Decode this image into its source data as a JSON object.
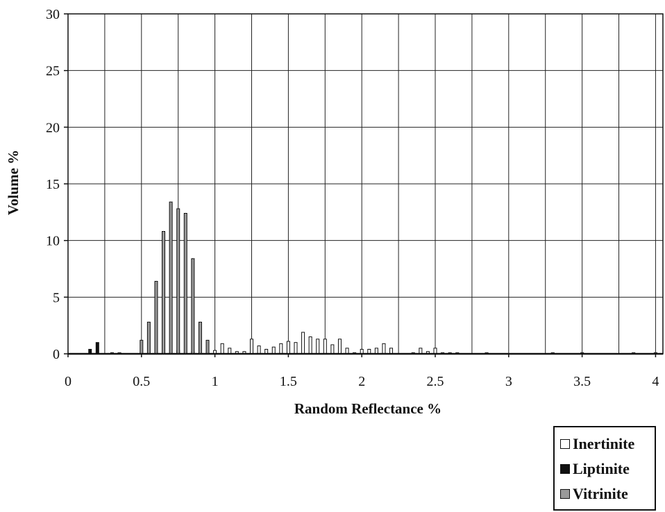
{
  "chart_data": {
    "type": "bar",
    "xlabel": "Random Reflectance %",
    "ylabel": "Volume %",
    "xlim": [
      0,
      4.05
    ],
    "ylim": [
      0,
      30
    ],
    "xticks": [
      0,
      0.5,
      1,
      1.5,
      2,
      2.5,
      3,
      3.5,
      4
    ],
    "xtick_labels": [
      "0",
      "0.5",
      "1",
      "1.5",
      "2",
      "2.5",
      "3",
      "3.5",
      "4"
    ],
    "yticks": [
      0,
      5,
      10,
      15,
      20,
      25,
      30
    ],
    "ytick_labels": [
      "0",
      "5",
      "10",
      "15",
      "20",
      "25",
      "30"
    ],
    "grid": true,
    "legend_position": "bottom-right",
    "legend": [
      "Inertinite",
      "Liptinite",
      "Vitrinite"
    ],
    "series": [
      {
        "name": "Inertinite",
        "color": "#ffffff",
        "pattern": "empty",
        "x": [
          0.35,
          0.75,
          0.85,
          0.95,
          1.0,
          1.05,
          1.1,
          1.15,
          1.2,
          1.25,
          1.3,
          1.35,
          1.4,
          1.45,
          1.5,
          1.55,
          1.6,
          1.65,
          1.7,
          1.75,
          1.8,
          1.85,
          1.9,
          1.95,
          2.0,
          2.05,
          2.1,
          2.15,
          2.2,
          2.35,
          2.4,
          2.45,
          2.5,
          2.55,
          2.6,
          2.65,
          2.85,
          3.3,
          3.5,
          3.85,
          4.0
        ],
        "values": [
          0.1,
          0.3,
          0.2,
          0.3,
          0.3,
          0.9,
          0.5,
          0.2,
          0.2,
          1.3,
          0.7,
          0.4,
          0.6,
          0.9,
          1.1,
          1.0,
          1.9,
          1.5,
          1.3,
          1.3,
          0.8,
          1.3,
          0.5,
          0.1,
          0.4,
          0.4,
          0.5,
          0.9,
          0.5,
          0.1,
          0.5,
          0.2,
          0.5,
          0.1,
          0.1,
          0.1,
          0.1,
          0.1,
          0.1,
          0.1,
          0.1
        ]
      },
      {
        "name": "Liptinite",
        "color": "#111111",
        "pattern": "solid",
        "x": [
          0.15,
          0.2,
          0.3
        ],
        "values": [
          0.4,
          1.0,
          0.1
        ]
      },
      {
        "name": "Vitrinite",
        "color": "#bbbbbb",
        "pattern": "dotted",
        "x": [
          0.5,
          0.55,
          0.6,
          0.65,
          0.7,
          0.75,
          0.8,
          0.85,
          0.9,
          0.95
        ],
        "values": [
          1.2,
          2.8,
          6.4,
          10.8,
          13.4,
          12.8,
          12.4,
          8.4,
          2.8,
          1.2
        ]
      }
    ]
  }
}
